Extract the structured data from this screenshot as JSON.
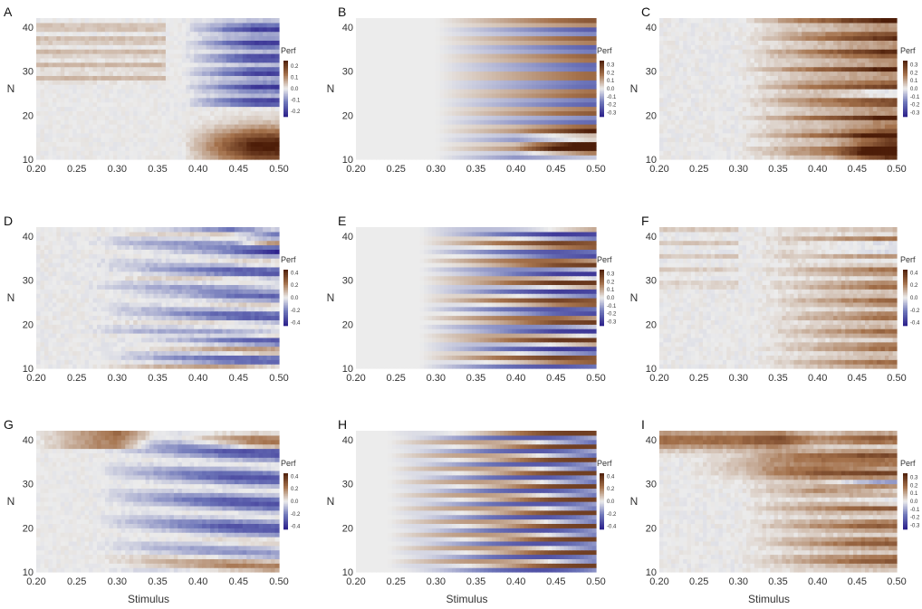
{
  "colors": {
    "negative": "#2a1f8a",
    "mid_negative": "#6c74b8",
    "neutral": "#ececec",
    "mid_positive": "#a4714b",
    "positive": "#4d1d08"
  },
  "chart_data": [
    {
      "type": "heatmap",
      "label": "A",
      "title": "",
      "xlabel": "",
      "ylabel": "N",
      "x_ticks": [
        "0.20",
        "0.25",
        "0.30",
        "0.35",
        "0.40",
        "0.45",
        "0.50"
      ],
      "y_ticks": [
        "10",
        "20",
        "30",
        "40"
      ],
      "xlim": [
        0.2,
        0.5
      ],
      "ylim": [
        10,
        42
      ],
      "colorbar": {
        "title": "Perf",
        "ticks": [
          "0.2",
          "0.1",
          "0.0",
          "-0.1",
          "-0.2"
        ],
        "range": [
          -0.25,
          0.25
        ]
      },
      "pattern": "Blue (negative) region around N 23–41 at stimulus 0.42–0.50; strong brown (positive) around N 10–17 at stimulus 0.42–0.50; faint brown stripes left of 0.35 for N above 28"
    },
    {
      "type": "heatmap",
      "label": "B",
      "title": "",
      "xlabel": "",
      "ylabel": "N",
      "x_ticks": [
        "0.20",
        "0.25",
        "0.30",
        "0.35",
        "0.40",
        "0.45",
        "0.50"
      ],
      "y_ticks": [
        "10",
        "20",
        "30",
        "40"
      ],
      "xlim": [
        0.2,
        0.5
      ],
      "ylim": [
        10,
        42
      ],
      "colorbar": {
        "title": "Perf",
        "ticks": [
          "0.3",
          "0.2",
          "0.1",
          "0.0",
          "-0.1",
          "-0.2",
          "-0.3"
        ],
        "range": [
          -0.35,
          0.35
        ]
      },
      "pattern": "Alternating brown/blue horizontal bands increasing toward stimulus 0.50; strong brown at low N near 0.45–0.50"
    },
    {
      "type": "heatmap",
      "label": "C",
      "title": "",
      "xlabel": "",
      "ylabel": "N",
      "x_ticks": [
        "0.20",
        "0.25",
        "0.30",
        "0.35",
        "0.40",
        "0.45",
        "0.50"
      ],
      "y_ticks": [
        "10",
        "20",
        "30",
        "40"
      ],
      "xlim": [
        0.2,
        0.5
      ],
      "ylim": [
        10,
        42
      ],
      "colorbar": {
        "title": "Perf",
        "ticks": [
          "0.3",
          "0.2",
          "0.1",
          "0.0",
          "-0.1",
          "-0.2",
          "-0.3"
        ],
        "range": [
          -0.35,
          0.35
        ]
      },
      "pattern": "Mostly brown horizontal stripes strengthening toward stimulus 0.50, a few faint blue streaks"
    },
    {
      "type": "heatmap",
      "label": "D",
      "title": "",
      "xlabel": "",
      "ylabel": "N",
      "x_ticks": [
        "0.20",
        "0.25",
        "0.30",
        "0.35",
        "0.40",
        "0.45",
        "0.50"
      ],
      "y_ticks": [
        "10",
        "20",
        "30",
        "40"
      ],
      "xlim": [
        0.2,
        0.5
      ],
      "ylim": [
        10,
        42
      ],
      "colorbar": {
        "title": "Perf",
        "ticks": [
          "0.4",
          "0.2",
          "0.0",
          "-0.2",
          "-0.4"
        ],
        "range": [
          -0.45,
          0.45
        ]
      },
      "pattern": "Blue fan-shaped bands starting near stimulus 0.28 and widening toward 0.50, brown stripes at low N"
    },
    {
      "type": "heatmap",
      "label": "E",
      "title": "",
      "xlabel": "",
      "ylabel": "N",
      "x_ticks": [
        "0.20",
        "0.25",
        "0.30",
        "0.35",
        "0.40",
        "0.45",
        "0.50"
      ],
      "y_ticks": [
        "10",
        "20",
        "30",
        "40"
      ],
      "xlim": [
        0.2,
        0.5
      ],
      "ylim": [
        10,
        42
      ],
      "colorbar": {
        "title": "Perf",
        "ticks": [
          "0.3",
          "0.2",
          "0.1",
          "0.0",
          "-0.1",
          "-0.2",
          "-0.3"
        ],
        "range": [
          -0.35,
          0.35
        ]
      },
      "pattern": "Smooth alternating blue/brown bands emanating from stimulus 0.30, strongest near 0.45"
    },
    {
      "type": "heatmap",
      "label": "F",
      "title": "",
      "xlabel": "",
      "ylabel": "N",
      "x_ticks": [
        "0.20",
        "0.25",
        "0.30",
        "0.35",
        "0.40",
        "0.45",
        "0.50"
      ],
      "y_ticks": [
        "10",
        "20",
        "30",
        "40"
      ],
      "xlim": [
        0.2,
        0.5
      ],
      "ylim": [
        10,
        42
      ],
      "colorbar": {
        "title": "Perf",
        "ticks": [
          "0.4",
          "0.2",
          "0.0",
          "-0.2",
          "-0.4"
        ],
        "range": [
          -0.45,
          0.45
        ]
      },
      "pattern": "Predominantly brown stripes at stimulus above 0.35, blue patches near N 35–40"
    },
    {
      "type": "heatmap",
      "label": "G",
      "title": "",
      "xlabel": "Stimulus",
      "ylabel": "N",
      "x_ticks": [
        "0.20",
        "0.25",
        "0.30",
        "0.35",
        "0.40",
        "0.45",
        "0.50"
      ],
      "y_ticks": [
        "10",
        "20",
        "30",
        "40"
      ],
      "xlim": [
        0.2,
        0.5
      ],
      "ylim": [
        10,
        42
      ],
      "colorbar": {
        "title": "Perf",
        "ticks": [
          "0.4",
          "0.2",
          "0.0",
          "-0.2",
          "-0.4"
        ],
        "range": [
          -0.45,
          0.45
        ]
      },
      "pattern": "Wide blue fan bands from stimulus 0.28 toward 0.50, brown at bottom rows and top right"
    },
    {
      "type": "heatmap",
      "label": "H",
      "title": "",
      "xlabel": "Stimulus",
      "ylabel": "N",
      "x_ticks": [
        "0.20",
        "0.25",
        "0.30",
        "0.35",
        "0.40",
        "0.45",
        "0.50"
      ],
      "y_ticks": [
        "10",
        "20",
        "30",
        "40"
      ],
      "xlim": [
        0.2,
        0.5
      ],
      "ylim": [
        10,
        42
      ],
      "colorbar": {
        "title": "Perf",
        "ticks": [
          "0.4",
          "0.2",
          "0.0",
          "-0.2",
          "-0.4"
        ],
        "range": [
          -0.45,
          0.45
        ]
      },
      "pattern": "Smooth thin alternating brown/blue bands diverging from stimulus 0.25"
    },
    {
      "type": "heatmap",
      "label": "I",
      "title": "",
      "xlabel": "Stimulus",
      "ylabel": "N",
      "x_ticks": [
        "0.20",
        "0.25",
        "0.30",
        "0.35",
        "0.40",
        "0.45",
        "0.50"
      ],
      "y_ticks": [
        "10",
        "20",
        "30",
        "40"
      ],
      "xlim": [
        0.2,
        0.5
      ],
      "ylim": [
        10,
        42
      ],
      "colorbar": {
        "title": "Perf",
        "ticks": [
          "0.3",
          "0.2",
          "0.1",
          "0.0",
          "-0.1",
          "-0.2",
          "-0.3"
        ],
        "range": [
          -0.35,
          0.35
        ]
      },
      "pattern": "Strong brown across much of the panel, especially N 10–25 at stimulus 0.40–0.48 and N 35–40 from 0.20; blue patches near N 25–40 around stimulus 0.40–0.48"
    }
  ]
}
